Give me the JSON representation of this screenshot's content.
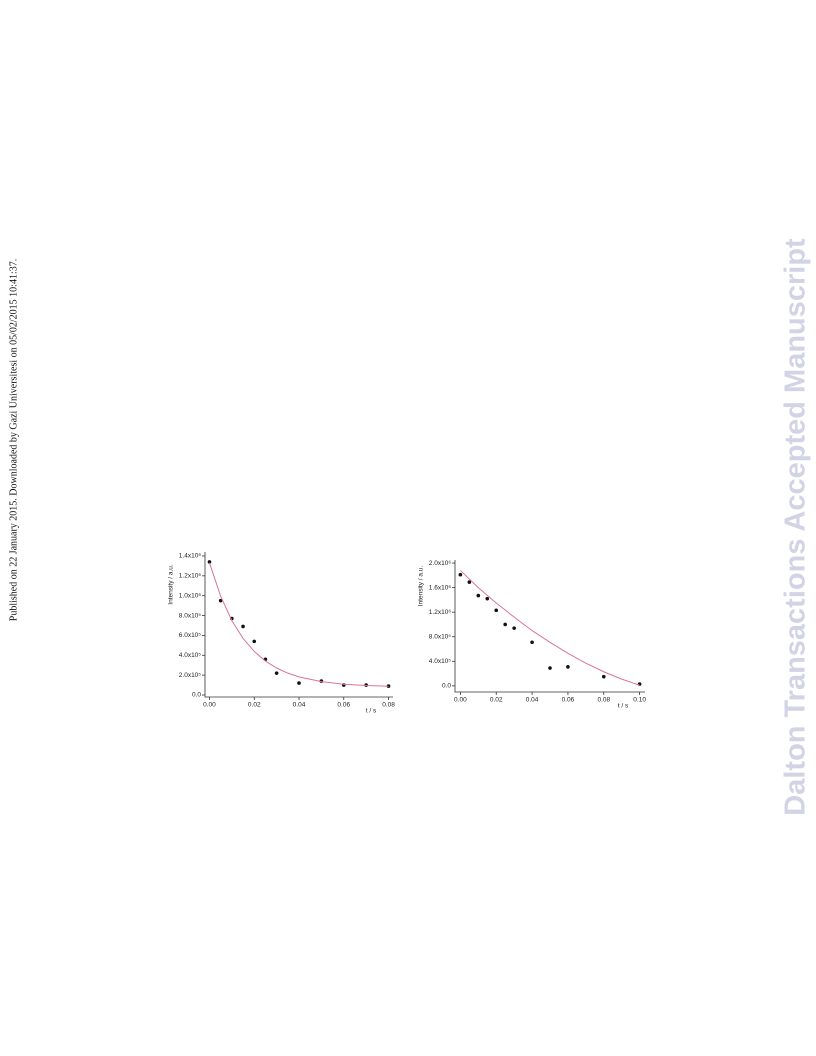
{
  "side_note": "Published on 22 January 2015. Downloaded by Gazi Universitesi on 05/02/2015 10:41:37.",
  "watermark": "Dalton Transactions Accepted Manuscript",
  "chart_data": [
    {
      "type": "scatter",
      "x_label": "t / s",
      "y_label": "Intensity / a.u.",
      "xlim": [
        -0.002,
        0.082
      ],
      "ylim": [
        -20000,
        1440000
      ],
      "xticks": [
        {
          "value": 0,
          "label": "0.00"
        },
        {
          "value": 0.02,
          "label": "0.02"
        },
        {
          "value": 0.04,
          "label": "0.04"
        },
        {
          "value": 0.06,
          "label": "0.06"
        },
        {
          "value": 0.08,
          "label": "0.08"
        }
      ],
      "yticks": [
        {
          "value": 0,
          "label": "0.0"
        },
        {
          "value": 200000,
          "label": "2.0x10⁵"
        },
        {
          "value": 400000,
          "label": "4.0x10⁵"
        },
        {
          "value": 600000,
          "label": "6.0x10⁵"
        },
        {
          "value": 800000,
          "label": "8.0x10⁵"
        },
        {
          "value": 1000000,
          "label": "1.0x10⁶"
        },
        {
          "value": 1200000,
          "label": "1.2x10⁶"
        },
        {
          "value": 1400000,
          "label": "1.4x10⁶"
        }
      ],
      "series": [
        {
          "color": "#111111",
          "marker": "point",
          "x": [
            0,
            0.005,
            0.01,
            0.015,
            0.02,
            0.025,
            0.03,
            0.04,
            0.05,
            0.06,
            0.07,
            0.08
          ],
          "values": [
            1340000,
            950000,
            770000,
            690000,
            540000,
            360000,
            220000,
            120000,
            140000,
            100000,
            100000,
            90000
          ]
        },
        {
          "color": "#d9778f",
          "marker": "line",
          "x": [
            0,
            0.005,
            0.01,
            0.015,
            0.02,
            0.025,
            0.03,
            0.035,
            0.04,
            0.05,
            0.06,
            0.07,
            0.08
          ],
          "values": [
            1330000,
            995000,
            749000,
            570000,
            439000,
            342000,
            272000,
            220000,
            183000,
            135000,
            109000,
            96000,
            88000
          ]
        }
      ]
    },
    {
      "type": "scatter",
      "x_label": "t / s",
      "y_label": "Intensity / a.u.",
      "xlim": [
        -0.003,
        0.103
      ],
      "ylim": [
        -100000,
        2050000
      ],
      "xticks": [
        {
          "value": 0,
          "label": "0.00"
        },
        {
          "value": 0.02,
          "label": "0.02"
        },
        {
          "value": 0.04,
          "label": "0.04"
        },
        {
          "value": 0.06,
          "label": "0.06"
        },
        {
          "value": 0.08,
          "label": "0.08"
        },
        {
          "value": 0.1,
          "label": "0.10"
        }
      ],
      "yticks": [
        {
          "value": 0,
          "label": "0.0"
        },
        {
          "value": 400000,
          "label": "4.0x10⁵"
        },
        {
          "value": 800000,
          "label": "8.0x10⁵"
        },
        {
          "value": 1200000,
          "label": "1.2x10⁶"
        },
        {
          "value": 1600000,
          "label": "1.6x10⁶"
        },
        {
          "value": 2000000,
          "label": "2.0x10⁶"
        }
      ],
      "series": [
        {
          "color": "#111111",
          "marker": "point",
          "x": [
            0,
            0.005,
            0.01,
            0.015,
            0.02,
            0.025,
            0.03,
            0.04,
            0.05,
            0.06,
            0.08,
            0.1
          ],
          "values": [
            1810000,
            1690000,
            1470000,
            1420000,
            1230000,
            1000000,
            940000,
            710000,
            290000,
            310000,
            150000,
            30000
          ]
        },
        {
          "color": "#d9778f",
          "marker": "line",
          "x": [
            0,
            0.01,
            0.02,
            0.03,
            0.04,
            0.05,
            0.06,
            0.07,
            0.08,
            0.09,
            0.1
          ],
          "values": [
            1880000,
            1600000,
            1350000,
            1120000,
            900000,
            710000,
            530000,
            370000,
            230000,
            110000,
            10000
          ]
        }
      ]
    }
  ]
}
